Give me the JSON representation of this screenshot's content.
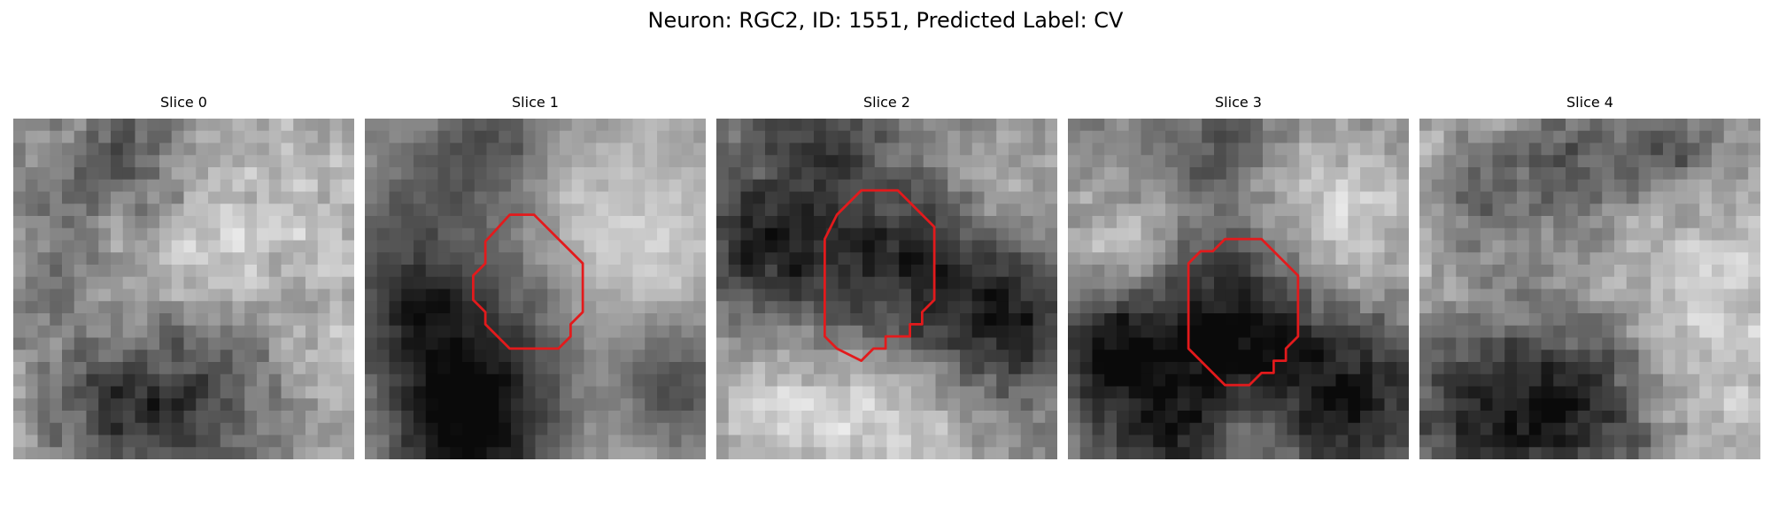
{
  "figure": {
    "title": "Neuron: RGC2, ID: 1551, Predicted Label: CV"
  },
  "panels": [
    {
      "title": "Slice 0",
      "has_outline": false
    },
    {
      "title": "Slice 1",
      "has_outline": true
    },
    {
      "title": "Slice 2",
      "has_outline": true
    },
    {
      "title": "Slice 3",
      "has_outline": true
    },
    {
      "title": "Slice 4",
      "has_outline": false
    }
  ],
  "colors": {
    "outline": "#e31a1c",
    "colormap": "grayscale"
  }
}
